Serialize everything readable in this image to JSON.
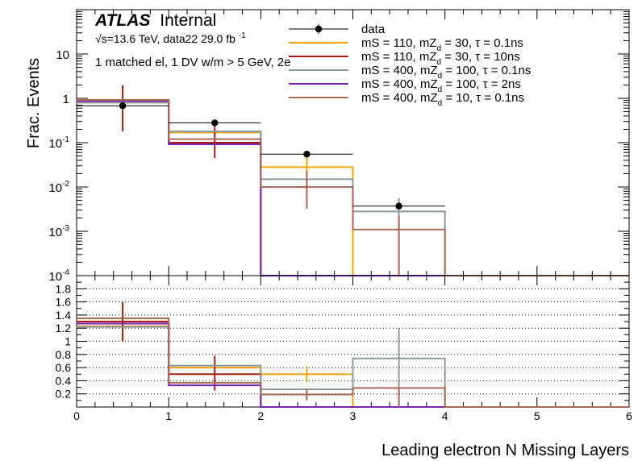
{
  "chart_data": {
    "type": "histogram",
    "atlas_label": "ATLAS",
    "atlas_suffix": "Internal",
    "energy_label": "√s=13.6 TeV, data22 29.0 fb",
    "energy_sup": "-1",
    "selection_label": "1 matched el, 1 DV w/m > 5 GeV, 2e",
    "xlabel": "Leading electron N Missing Layers",
    "ylabel": "Frac. Events",
    "xlim": [
      0,
      6
    ],
    "x_ticks": [
      "0",
      "1",
      "2",
      "3",
      "4",
      "5",
      "6"
    ],
    "bin_edges": [
      0,
      1,
      2,
      3,
      4,
      5,
      6
    ],
    "top_panel": {
      "yscale": "log",
      "ylim": [
        0.0001,
        100
      ],
      "y_ticks": [
        {
          "v": 10,
          "base": "10",
          "exp": ""
        },
        {
          "v": 1,
          "base": "1",
          "exp": ""
        },
        {
          "v": 0.1,
          "base": "10",
          "exp": "-1"
        },
        {
          "v": 0.01,
          "base": "10",
          "exp": "-2"
        },
        {
          "v": 0.001,
          "base": "10",
          "exp": "-3"
        },
        {
          "v": 0.0001,
          "base": "10",
          "exp": "-4"
        }
      ]
    },
    "bottom_panel": {
      "ylim": [
        0,
        2.0
      ],
      "y_ticks": [
        "0.2",
        "0.4",
        "0.6",
        "0.8",
        "1",
        "1.2",
        "1.4",
        "1.6",
        "1.8"
      ],
      "grid": "dotted"
    },
    "data": {
      "label": "data",
      "color": "#000000",
      "values": [
        0.68,
        0.28,
        0.055,
        0.0037,
        null,
        null
      ]
    },
    "series": [
      {
        "label": "mS = 110, mZ = 30, τ = 0.1ns",
        "sub": "d",
        "color": "#f0a30a",
        "values": [
          0.84,
          0.17,
          0.028,
          null,
          null,
          null
        ],
        "ratio": [
          1.23,
          0.6,
          0.5,
          0,
          0,
          0
        ],
        "err_bins": [
          2
        ],
        "err_top": [
          0.035
        ],
        "err_bot": [
          0.021
        ],
        "ratio_err": [
          [
            0.38,
            0.62
          ]
        ],
        "ratio_err_bins": [
          2
        ]
      },
      {
        "label": "mS = 110, mZ = 30, τ = 10ns",
        "sub": "d",
        "color": "#a31a0e",
        "values": [
          0.9,
          0.1,
          null,
          null,
          null,
          null
        ],
        "ratio": [
          1.3,
          0.5,
          0,
          0,
          0,
          0
        ],
        "err_bins": [
          0,
          1
        ],
        "err_top": [
          1.08,
          0.18
        ],
        "err_bot": [
          0.72,
          0.055
        ],
        "ratio_err": [
          [
            1.0,
            1.6
          ],
          [
            0.25,
            0.78
          ]
        ],
        "ratio_err_bins": [
          0,
          1
        ]
      },
      {
        "label": "mS = 400, mZ = 100, τ = 0.1ns",
        "sub": "d",
        "color": "#8a9ba0",
        "values": [
          0.8,
          0.18,
          0.015,
          0.0028,
          null,
          null
        ],
        "ratio": [
          1.22,
          0.63,
          0.27,
          0.74,
          0,
          0
        ],
        "err_bins": [
          3
        ],
        "err_top": [
          0.0028
        ],
        "err_bot": [
          0.0028
        ],
        "ratio_err": [
          [
            0.0,
            1.2
          ]
        ],
        "ratio_err_bins": [
          3
        ]
      },
      {
        "label": "mS = 400, mZ = 100, τ = 2ns",
        "sub": "d",
        "color": "#7a22b8",
        "values": [
          0.87,
          0.092,
          null,
          null,
          null,
          null
        ],
        "ratio": [
          1.27,
          0.33,
          0,
          0,
          0,
          0
        ],
        "err_bins": [],
        "err_top": [],
        "err_bot": [],
        "ratio_err": [],
        "ratio_err_bins": []
      },
      {
        "label": "mS = 400, mZ = 10, τ = 0.1ns",
        "sub": "d",
        "color": "#a86a55",
        "values": [
          0.92,
          0.12,
          0.01,
          0.0011,
          null,
          null
        ],
        "ratio": [
          1.35,
          0.37,
          0.19,
          0.29,
          0,
          0
        ],
        "err_bins": [
          2,
          3
        ],
        "err_top": [
          0.013,
          0.0011
        ],
        "err_bot": [
          0.0068,
          0.0011
        ],
        "ratio_err": [
          [
            0.1,
            0.28
          ],
          [
            0.0,
            0.29
          ]
        ],
        "ratio_err_bins": [
          2,
          3
        ]
      }
    ],
    "data_xerr": true,
    "data_yerr_top": [
      0.71,
      0.29,
      0.058,
      0.004
    ]
  }
}
